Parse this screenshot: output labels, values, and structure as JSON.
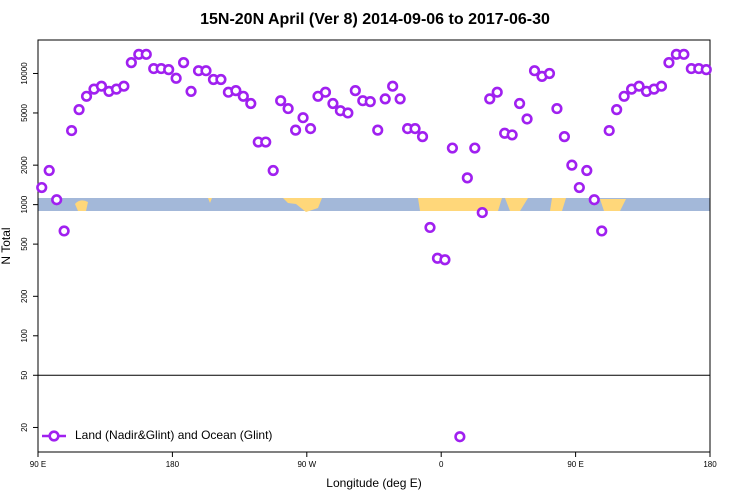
{
  "chart_data": {
    "type": "scatter",
    "title": "15N-20N April (Ver 8)   2014-09-06 to 2017-06-30",
    "x_label": "Longitude (deg E)",
    "y_label": "N Total",
    "log_y": true,
    "hline": 50,
    "legend": "bottom-left",
    "xlim": [
      90,
      540
    ],
    "xticks": [
      {
        "value": 90,
        "label": "90 E"
      },
      180,
      {
        "value": 270,
        "label": "90 W"
      },
      {
        "value": 360,
        "label": "0"
      },
      {
        "value": 450,
        "label": "90 E"
      },
      {
        "value": 540,
        "label": "180"
      }
    ],
    "ylim": [
      13,
      18000
    ],
    "yticks": [
      20,
      50,
      100,
      200,
      500,
      1000,
      2000,
      5000,
      10000
    ],
    "series": [
      {
        "name": "Land (Nadir&Glint) and Ocean (Glint)",
        "color": "#a020f0",
        "x": [
          92.5,
          97.5,
          102.5,
          107.5,
          112.5,
          117.5,
          122.5,
          127.5,
          132.5,
          137.5,
          142.5,
          147.5,
          152.5,
          157.5,
          162.5,
          167.5,
          172.5,
          177.5,
          182.5,
          187.5,
          192.5,
          197.5,
          202.5,
          207.5,
          212.5,
          217.5,
          222.5,
          227.5,
          232.5,
          237.5,
          242.5,
          247.5,
          252.5,
          257.5,
          262.5,
          267.5,
          272.5,
          277.5,
          282.5,
          287.5,
          292.5,
          297.5,
          302.5,
          307.5,
          312.5,
          317.5,
          322.5,
          327.5,
          332.5,
          337.5,
          342.5,
          347.5,
          352.5,
          357.5,
          362.5,
          367.5,
          372.5,
          377.5,
          382.5,
          387.5,
          392.5,
          397.5,
          402.5,
          407.5,
          412.5,
          417.5,
          422.5,
          427.5,
          432.5,
          437.5,
          442.5,
          447.5,
          452.5,
          457.5,
          462.5,
          467.5,
          472.5,
          477.5,
          482.5,
          487.5,
          492.5,
          497.5,
          502.5,
          507.5,
          512.5,
          517.5,
          522.5,
          527.5,
          532.5,
          537.5
        ],
        "values": [
          1350,
          1820,
          1090,
          630,
          3670,
          5300,
          6700,
          7600,
          8000,
          7300,
          7600,
          8000,
          12100,
          14000,
          14000,
          10900,
          10900,
          10700,
          9200,
          12100,
          7300,
          10500,
          10500,
          9000,
          9000,
          7200,
          7400,
          6700,
          5900,
          3000,
          3000,
          1820,
          6200,
          5400,
          3700,
          4600,
          3800,
          6700,
          7200,
          5900,
          5200,
          5000,
          7400,
          6200,
          6100,
          3700,
          6400,
          8000,
          6400,
          3800,
          3800,
          3300,
          670,
          390,
          380,
          2700,
          17,
          1600,
          2700,
          870,
          6400,
          7200,
          3500,
          3400,
          5900,
          4500,
          10500,
          9500,
          10000,
          5400,
          3300,
          2000,
          1350,
          1820,
          1090,
          630,
          3670,
          5300,
          6700,
          7600,
          8000,
          7300,
          7600,
          8000,
          12100,
          14000,
          14000,
          10900,
          10900,
          10700
        ]
      }
    ]
  }
}
